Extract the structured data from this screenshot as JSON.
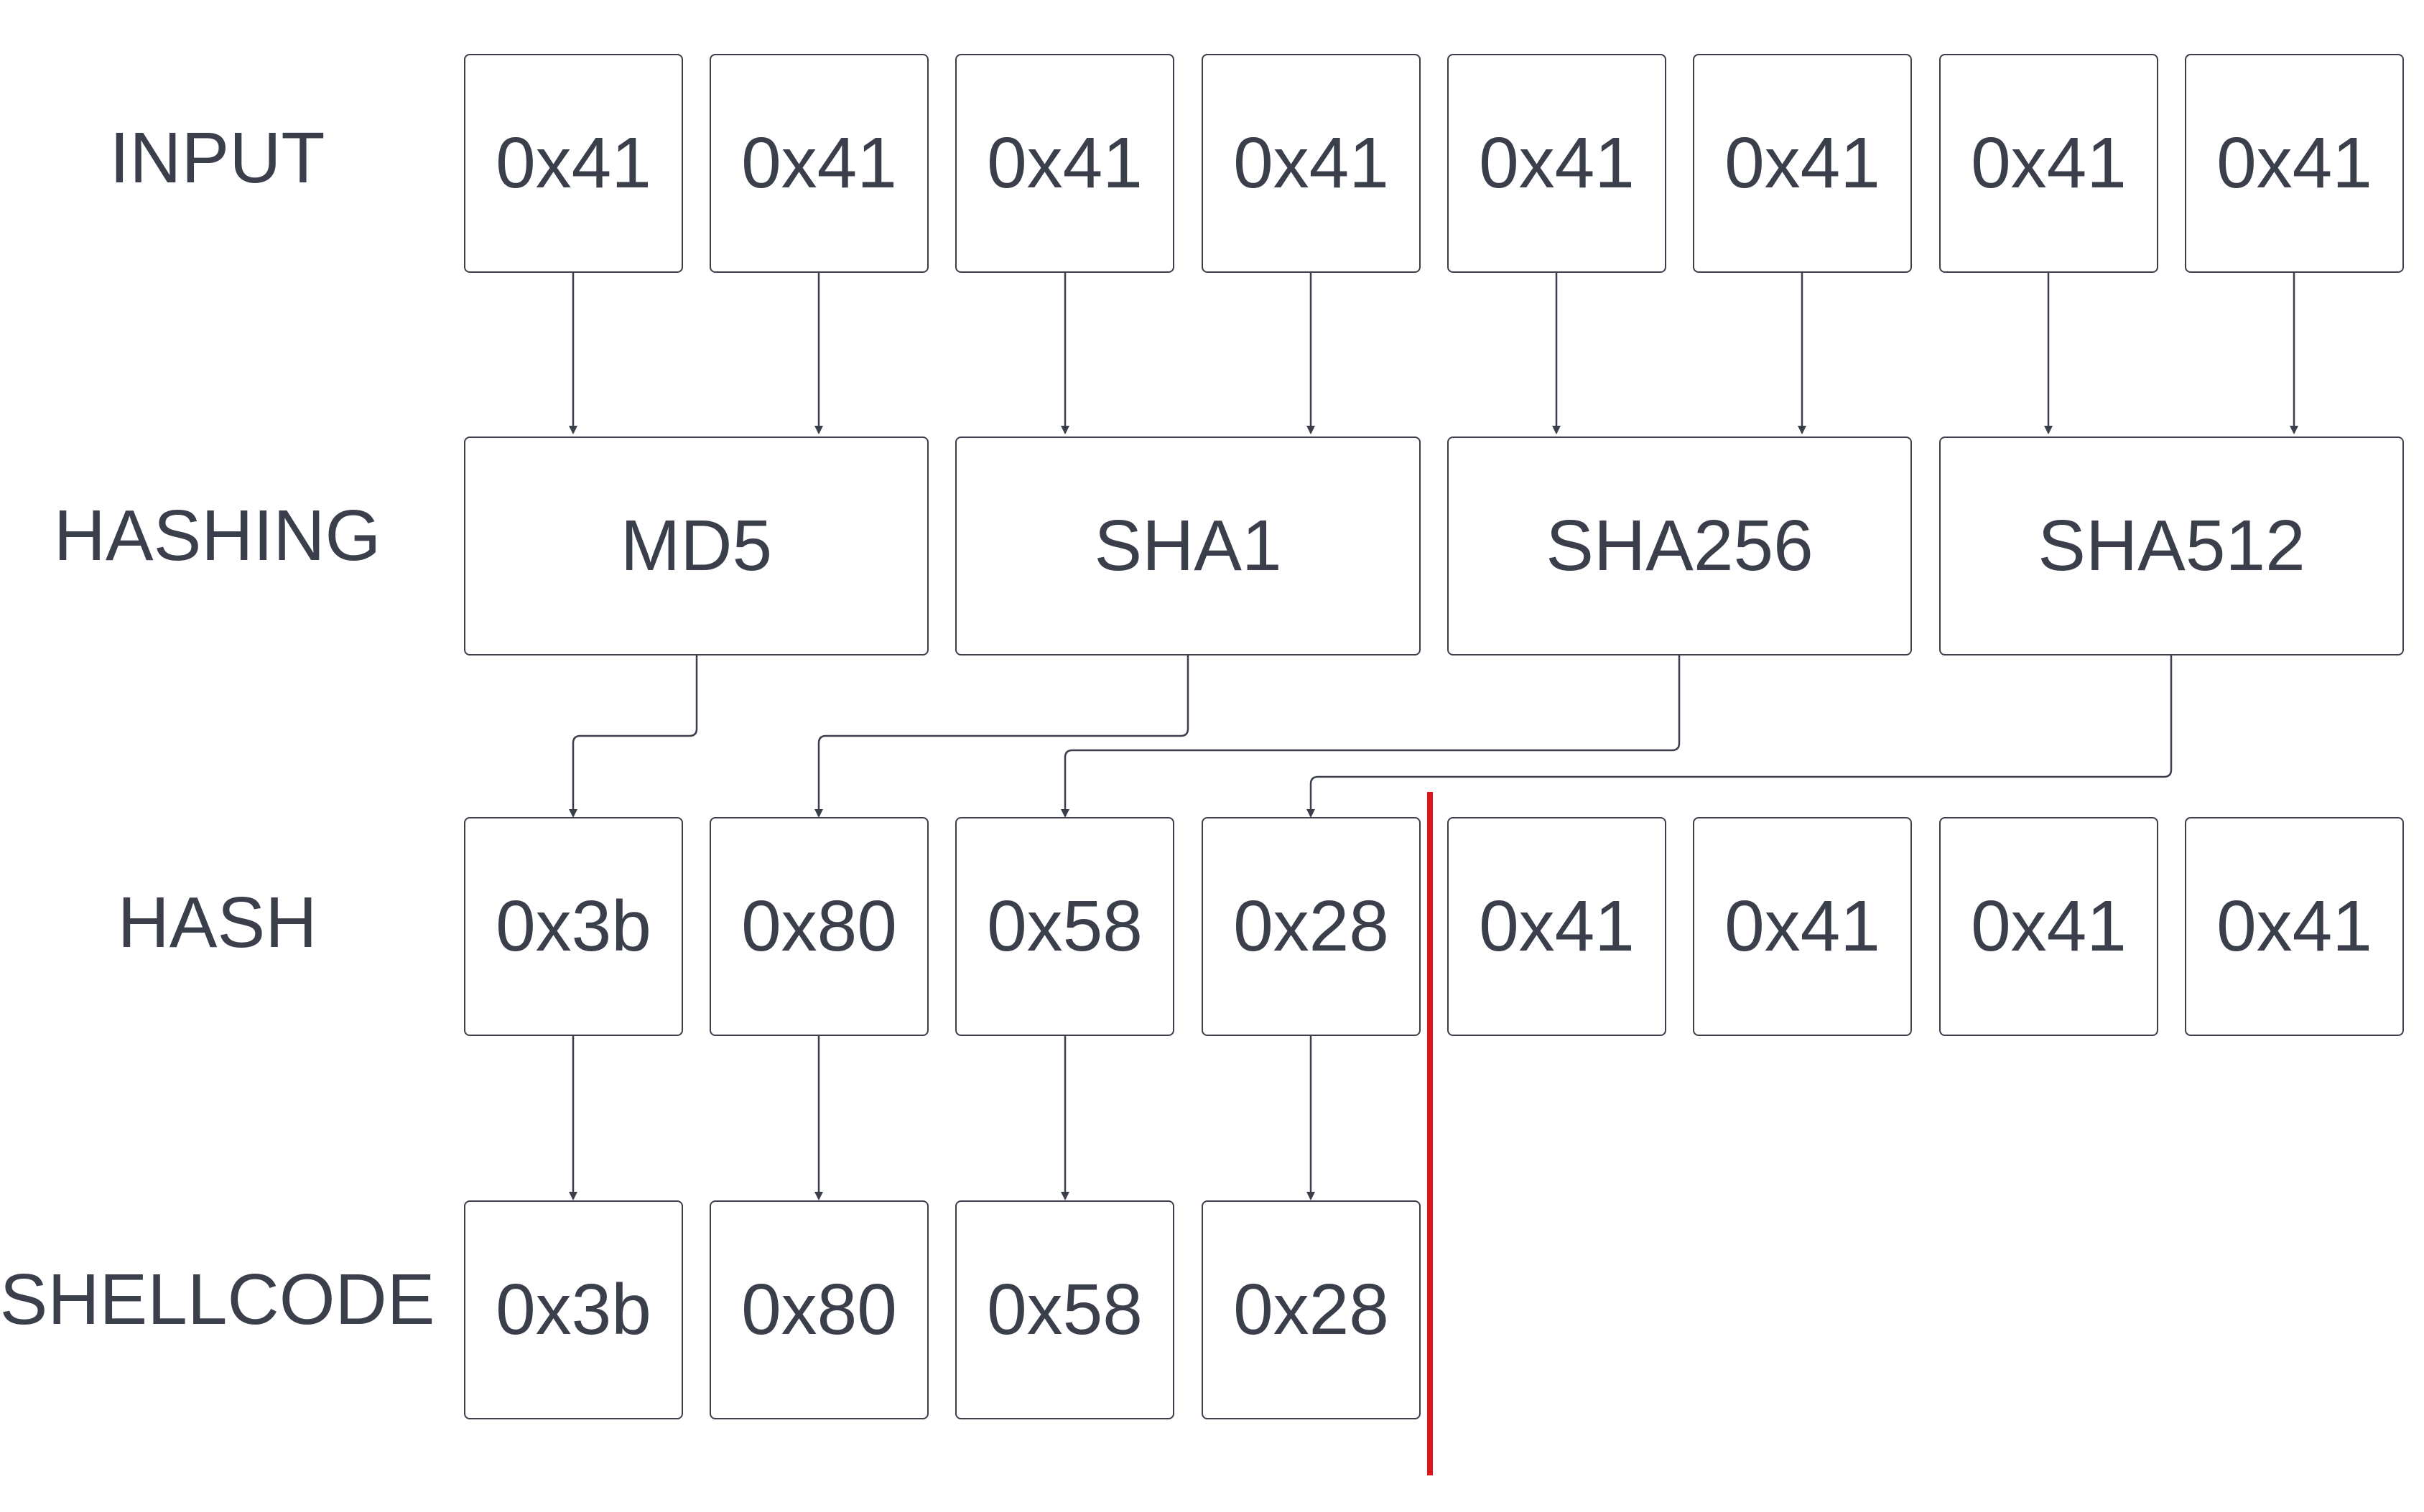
{
  "rows": {
    "input": "INPUT",
    "hashing": "HASHING",
    "hash": "HASH",
    "shellcode": "SHELLCODE"
  },
  "input_bytes": [
    "0x41",
    "0x41",
    "0x41",
    "0x41",
    "0x41",
    "0x41",
    "0x41",
    "0x41"
  ],
  "hash_functions": [
    "MD5",
    "SHA1",
    "SHA256",
    "SHA512"
  ],
  "hash_bytes": [
    "0x3b",
    "0x80",
    "0x58",
    "0x28",
    "0x41",
    "0x41",
    "0x41",
    "0x41"
  ],
  "shellcode_bytes": [
    "0x3b",
    "0x80",
    "0x58",
    "0x28"
  ],
  "colors": {
    "ink": "#3a3f4b",
    "separator": "#e0151b"
  }
}
